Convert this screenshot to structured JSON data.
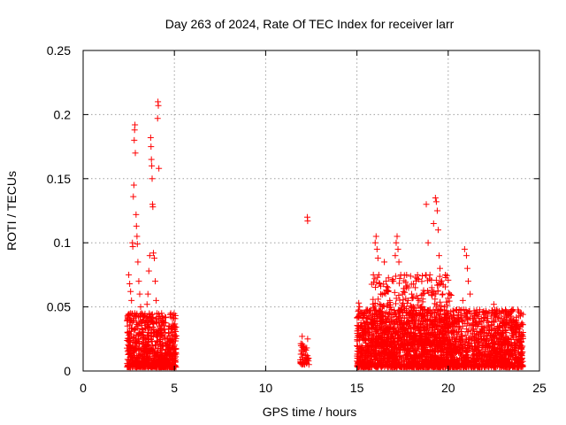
{
  "chart_data": {
    "type": "scatter",
    "title": "Day 263 of 2024, Rate Of TEC Index for receiver larr",
    "xlabel": "GPS time / hours",
    "ylabel": "ROTI / TECUs",
    "xlim": [
      0,
      25
    ],
    "ylim": [
      0,
      0.25
    ],
    "xticks": [
      "0",
      "5",
      "10",
      "15",
      "20",
      "25"
    ],
    "yticks": [
      "0",
      "0.05",
      "0.1",
      "0.15",
      "0.2",
      "0.25"
    ],
    "grid": true,
    "marker": "plus",
    "color": "#ff0000",
    "series": [
      {
        "points": [
          [
            2.5,
            0.075
          ],
          [
            2.55,
            0.068
          ],
          [
            2.6,
            0.062
          ],
          [
            2.65,
            0.055
          ],
          [
            2.7,
            0.1
          ],
          [
            2.72,
            0.097
          ],
          [
            2.75,
            0.136
          ],
          [
            2.78,
            0.145
          ],
          [
            2.8,
            0.18
          ],
          [
            2.82,
            0.188
          ],
          [
            2.84,
            0.192
          ],
          [
            2.86,
            0.17
          ],
          [
            2.9,
            0.122
          ],
          [
            2.92,
            0.113
          ],
          [
            2.95,
            0.105
          ],
          [
            2.97,
            0.099
          ],
          [
            3.0,
            0.085
          ],
          [
            3.05,
            0.07
          ],
          [
            3.1,
            0.06
          ],
          [
            3.15,
            0.05
          ],
          [
            3.2,
            0.045
          ],
          [
            3.3,
            0.04
          ],
          [
            2.6,
            0.045
          ],
          [
            2.7,
            0.038
          ],
          [
            2.8,
            0.032
          ],
          [
            2.9,
            0.028
          ],
          [
            3.0,
            0.035
          ],
          [
            3.3,
            0.03
          ],
          [
            3.4,
            0.025
          ],
          [
            3.5,
            0.052
          ],
          [
            3.55,
            0.06
          ],
          [
            3.6,
            0.078
          ],
          [
            3.65,
            0.09
          ],
          [
            3.7,
            0.182
          ],
          [
            3.72,
            0.175
          ],
          [
            3.74,
            0.165
          ],
          [
            3.76,
            0.16
          ],
          [
            3.78,
            0.15
          ],
          [
            3.8,
            0.13
          ],
          [
            3.82,
            0.128
          ],
          [
            3.85,
            0.092
          ],
          [
            3.9,
            0.088
          ],
          [
            3.95,
            0.07
          ],
          [
            4.0,
            0.055
          ],
          [
            4.05,
            0.045
          ],
          [
            4.1,
            0.21
          ],
          [
            4.12,
            0.207
          ],
          [
            4.08,
            0.197
          ],
          [
            4.15,
            0.158
          ],
          [
            4.2,
            0.035
          ],
          [
            4.3,
            0.045
          ],
          [
            4.4,
            0.038
          ],
          [
            4.5,
            0.03
          ],
          [
            4.6,
            0.025
          ],
          [
            4.8,
            0.045
          ],
          [
            4.9,
            0.03
          ],
          [
            5.0,
            0.035
          ],
          [
            3.9,
            0.03
          ],
          [
            4.0,
            0.028
          ],
          [
            12.0,
            0.027
          ],
          [
            12.05,
            0.02
          ],
          [
            12.1,
            0.015
          ],
          [
            12.2,
            0.012
          ],
          [
            12.25,
            0.018
          ],
          [
            12.3,
            0.025
          ],
          [
            12.35,
            0.01
          ],
          [
            12.15,
            0.008
          ],
          [
            12.28,
            0.12
          ],
          [
            12.3,
            0.117
          ],
          [
            15.1,
            0.053
          ],
          [
            15.15,
            0.05
          ],
          [
            15.2,
            0.045
          ],
          [
            15.3,
            0.03
          ],
          [
            15.5,
            0.038
          ],
          [
            15.8,
            0.04
          ],
          [
            15.9,
            0.075
          ],
          [
            16.0,
            0.1
          ],
          [
            16.05,
            0.105
          ],
          [
            16.1,
            0.095
          ],
          [
            16.15,
            0.088
          ],
          [
            16.2,
            0.075
          ],
          [
            16.25,
            0.068
          ],
          [
            16.3,
            0.06
          ],
          [
            16.4,
            0.05
          ],
          [
            16.5,
            0.085
          ],
          [
            16.6,
            0.07
          ],
          [
            16.7,
            0.065
          ],
          [
            16.8,
            0.055
          ],
          [
            16.9,
            0.048
          ],
          [
            17.0,
            0.07
          ],
          [
            17.1,
            0.09
          ],
          [
            17.15,
            0.1
          ],
          [
            17.2,
            0.105
          ],
          [
            17.25,
            0.095
          ],
          [
            17.3,
            0.085
          ],
          [
            17.4,
            0.075
          ],
          [
            17.5,
            0.06
          ],
          [
            17.6,
            0.05
          ],
          [
            17.7,
            0.065
          ],
          [
            17.8,
            0.055
          ],
          [
            17.9,
            0.045
          ],
          [
            18.0,
            0.06
          ],
          [
            18.1,
            0.05
          ],
          [
            18.2,
            0.065
          ],
          [
            18.3,
            0.072
          ],
          [
            18.4,
            0.055
          ],
          [
            18.5,
            0.05
          ],
          [
            18.6,
            0.06
          ],
          [
            18.7,
            0.048
          ],
          [
            18.8,
            0.13
          ],
          [
            18.9,
            0.1
          ],
          [
            19.0,
            0.075
          ],
          [
            19.1,
            0.065
          ],
          [
            19.2,
            0.115
          ],
          [
            19.3,
            0.135
          ],
          [
            19.35,
            0.132
          ],
          [
            19.4,
            0.125
          ],
          [
            19.45,
            0.11
          ],
          [
            19.5,
            0.09
          ],
          [
            19.55,
            0.08
          ],
          [
            19.6,
            0.068
          ],
          [
            19.7,
            0.06
          ],
          [
            19.8,
            0.05
          ],
          [
            19.9,
            0.042
          ],
          [
            20.0,
            0.045
          ],
          [
            20.2,
            0.04
          ],
          [
            20.4,
            0.035
          ],
          [
            20.5,
            0.042
          ],
          [
            20.6,
            0.048
          ],
          [
            20.8,
            0.055
          ],
          [
            20.9,
            0.095
          ],
          [
            21.0,
            0.09
          ],
          [
            21.05,
            0.08
          ],
          [
            21.1,
            0.07
          ],
          [
            21.2,
            0.06
          ],
          [
            21.4,
            0.04
          ],
          [
            21.6,
            0.035
          ],
          [
            21.8,
            0.038
          ],
          [
            22.0,
            0.03
          ],
          [
            22.2,
            0.035
          ],
          [
            22.4,
            0.045
          ],
          [
            22.5,
            0.052
          ],
          [
            22.6,
            0.04
          ],
          [
            22.8,
            0.035
          ],
          [
            22.9,
            0.045
          ],
          [
            23.0,
            0.038
          ],
          [
            23.2,
            0.03
          ],
          [
            23.4,
            0.045
          ],
          [
            23.5,
            0.048
          ],
          [
            23.6,
            0.04
          ],
          [
            23.7,
            0.03
          ],
          [
            23.8,
            0.035
          ],
          [
            23.9,
            0.03
          ],
          [
            24.0,
            0.025
          ]
        ],
        "dense_bands": [
          {
            "x": [
              2.4,
              5.1
            ],
            "y": [
              0.003,
              0.045
            ],
            "n": 800
          },
          {
            "x": [
              11.9,
              12.4
            ],
            "y": [
              0.005,
              0.022
            ],
            "n": 40
          },
          {
            "x": [
              15.0,
              24.1
            ],
            "y": [
              0.003,
              0.048
            ],
            "n": 2600
          },
          {
            "x": [
              15.8,
              20.2
            ],
            "y": [
              0.02,
              0.075
            ],
            "n": 450
          }
        ]
      }
    ]
  }
}
